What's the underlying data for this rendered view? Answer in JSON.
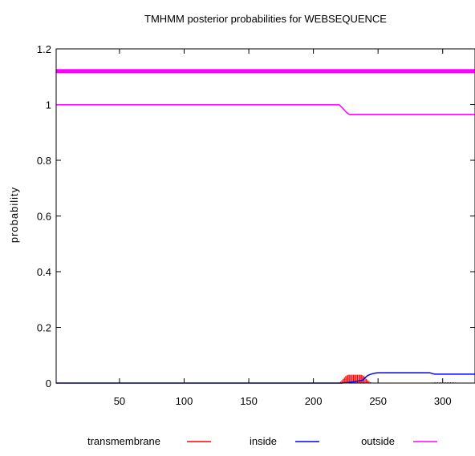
{
  "chart_data": {
    "type": "line",
    "title": "TMHMM posterior probabilities for WEBSEQUENCE",
    "xlabel": "",
    "ylabel": "probability",
    "xlim": [
      1,
      325
    ],
    "ylim": [
      0,
      1.2
    ],
    "x_ticks": [
      50,
      100,
      150,
      200,
      250,
      300
    ],
    "x_tick_labels": [
      "50",
      "100",
      "150",
      "200",
      "250",
      "300"
    ],
    "y_ticks": [
      0,
      0.2,
      0.4,
      0.6,
      0.8,
      1,
      1.2
    ],
    "y_tick_labels": [
      "0",
      "0.2",
      "0.4",
      "0.6",
      "0.8",
      "1",
      "1.2"
    ],
    "grid": false,
    "legend_position": "bottom",
    "series": [
      {
        "name": "transmembrane",
        "color": "#ff0000",
        "style": "impulses",
        "x": [
          221,
          222,
          223,
          224,
          225,
          226,
          227,
          228,
          229,
          230,
          231,
          232,
          233,
          234,
          235,
          236,
          237,
          238,
          239,
          240,
          241,
          242,
          243,
          244,
          245,
          292,
          294,
          296,
          298,
          300,
          302,
          304,
          306,
          308,
          310
        ],
        "values": [
          0.005,
          0.01,
          0.015,
          0.02,
          0.025,
          0.028,
          0.03,
          0.03,
          0.03,
          0.03,
          0.03,
          0.03,
          0.03,
          0.03,
          0.03,
          0.03,
          0.03,
          0.028,
          0.025,
          0.02,
          0.015,
          0.01,
          0.006,
          0.003,
          0.002,
          0.002,
          0.003,
          0.003,
          0.003,
          0.003,
          0.003,
          0.003,
          0.003,
          0.003,
          0.002
        ]
      },
      {
        "name": "inside",
        "color": "#0000ff",
        "style": "line",
        "x": [
          1,
          222,
          230,
          238,
          240,
          242,
          244,
          246,
          248,
          250,
          290,
          292,
          294,
          325
        ],
        "values": [
          0,
          0,
          0.004,
          0.01,
          0.02,
          0.027,
          0.031,
          0.034,
          0.036,
          0.037,
          0.037,
          0.034,
          0.032,
          0.032
        ]
      },
      {
        "name": "outside",
        "color": "#ff00ff",
        "style": "line",
        "x": [
          1,
          220,
          222,
          223,
          224,
          225,
          226,
          227,
          228,
          325
        ],
        "values": [
          0.999,
          0.999,
          0.99,
          0.985,
          0.98,
          0.975,
          0.97,
          0.967,
          0.965,
          0.965
        ]
      },
      {
        "name": "",
        "color": "#ff00ff",
        "style": "bar-line",
        "x": [
          1,
          325
        ],
        "values": [
          1.12,
          1.12
        ]
      }
    ]
  }
}
